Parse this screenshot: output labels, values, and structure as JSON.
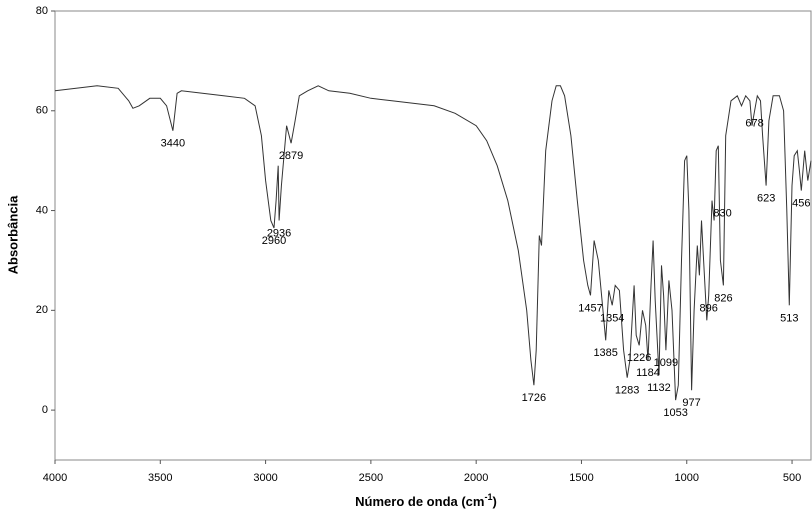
{
  "chart_data": {
    "type": "line",
    "y_label": "Absorbância",
    "x_label": {
      "text": "Número de onda (cm",
      "sup": "-1",
      "tail": ")"
    },
    "xlim": [
      4000,
      410
    ],
    "ylim": [
      -10,
      80
    ],
    "xticks": [
      4000,
      3500,
      3000,
      2500,
      2000,
      1500,
      1000,
      500
    ],
    "yticks": [
      0,
      20,
      40,
      60,
      80
    ],
    "grid": false,
    "series": [
      {
        "color": "#333333",
        "x": [
          4000,
          3900,
          3800,
          3700,
          3650,
          3630,
          3600,
          3550,
          3500,
          3470,
          3440,
          3420,
          3400,
          3300,
          3200,
          3100,
          3050,
          3020,
          3000,
          2975,
          2960,
          2950,
          2940,
          2936,
          2925,
          2900,
          2879,
          2860,
          2840,
          2800,
          2750,
          2700,
          2600,
          2500,
          2400,
          2300,
          2200,
          2100,
          2000,
          1950,
          1900,
          1850,
          1800,
          1760,
          1740,
          1726,
          1715,
          1700,
          1690,
          1670,
          1640,
          1620,
          1600,
          1580,
          1550,
          1520,
          1490,
          1470,
          1457,
          1440,
          1420,
          1400,
          1385,
          1370,
          1354,
          1340,
          1320,
          1300,
          1283,
          1270,
          1250,
          1240,
          1226,
          1210,
          1195,
          1184,
          1170,
          1160,
          1150,
          1132,
          1120,
          1110,
          1099,
          1085,
          1070,
          1053,
          1040,
          1025,
          1010,
          1000,
          990,
          977,
          965,
          950,
          940,
          930,
          920,
          905,
          896,
          880,
          870,
          860,
          850,
          840,
          826,
          815,
          790,
          760,
          740,
          720,
          700,
          690,
          678,
          665,
          650,
          640,
          623,
          610,
          590,
          560,
          540,
          525,
          513,
          500,
          490,
          475,
          465,
          456,
          440,
          425,
          410
        ],
        "values": [
          64,
          64.5,
          65,
          64.5,
          62,
          60.5,
          61,
          62.5,
          62.5,
          61,
          56,
          63.5,
          64,
          63.5,
          63,
          62.5,
          61,
          55,
          46,
          38,
          36.5,
          42,
          49,
          38,
          45,
          57,
          53.5,
          58,
          63,
          64,
          65,
          64,
          63.5,
          62.5,
          62,
          61.5,
          61,
          59.5,
          57,
          54,
          49,
          42,
          32,
          20,
          10,
          5,
          12,
          35,
          33,
          52,
          62,
          65,
          65,
          63,
          55,
          42,
          30,
          25,
          23,
          34,
          30,
          21,
          14,
          24,
          21,
          25,
          24,
          12,
          6.5,
          10,
          25,
          15,
          13,
          20,
          17,
          10,
          25,
          34,
          22,
          7,
          29,
          23,
          12,
          26,
          20,
          2,
          5,
          30,
          50,
          51,
          40,
          4,
          20,
          33,
          27,
          38,
          30,
          18,
          23,
          42,
          38,
          52,
          53,
          30,
          25,
          55,
          62,
          63,
          61,
          63,
          62,
          57,
          60,
          63,
          62,
          55,
          45,
          58,
          63,
          63,
          60,
          40,
          21,
          45,
          51,
          52,
          48,
          44,
          52,
          46,
          50
        ]
      }
    ],
    "annotations": [
      {
        "label": "3440",
        "x": 3440,
        "y": 56
      },
      {
        "label": "2960",
        "x": 2960,
        "y": 36.5
      },
      {
        "label": "2936",
        "x": 2936,
        "y": 38
      },
      {
        "label": "2879",
        "x": 2879,
        "y": 53.5
      },
      {
        "label": "1726",
        "x": 1726,
        "y": 5
      },
      {
        "label": "1457",
        "x": 1457,
        "y": 23
      },
      {
        "label": "1354",
        "x": 1354,
        "y": 21
      },
      {
        "label": "1385",
        "x": 1385,
        "y": 14
      },
      {
        "label": "1283",
        "x": 1283,
        "y": 6.5
      },
      {
        "label": "1226",
        "x": 1226,
        "y": 13
      },
      {
        "label": "1184",
        "x": 1184,
        "y": 10
      },
      {
        "label": "1132",
        "x": 1132,
        "y": 7
      },
      {
        "label": "1099",
        "x": 1099,
        "y": 12
      },
      {
        "label": "1053",
        "x": 1053,
        "y": 2
      },
      {
        "label": "977",
        "x": 977,
        "y": 4
      },
      {
        "label": "896",
        "x": 896,
        "y": 23
      },
      {
        "label": "830",
        "x": 830,
        "y": 42
      },
      {
        "label": "826",
        "x": 826,
        "y": 25
      },
      {
        "label": "678",
        "x": 678,
        "y": 60
      },
      {
        "label": "623",
        "x": 623,
        "y": 45
      },
      {
        "label": "513",
        "x": 513,
        "y": 21
      },
      {
        "label": "456",
        "x": 456,
        "y": 44
      }
    ]
  }
}
